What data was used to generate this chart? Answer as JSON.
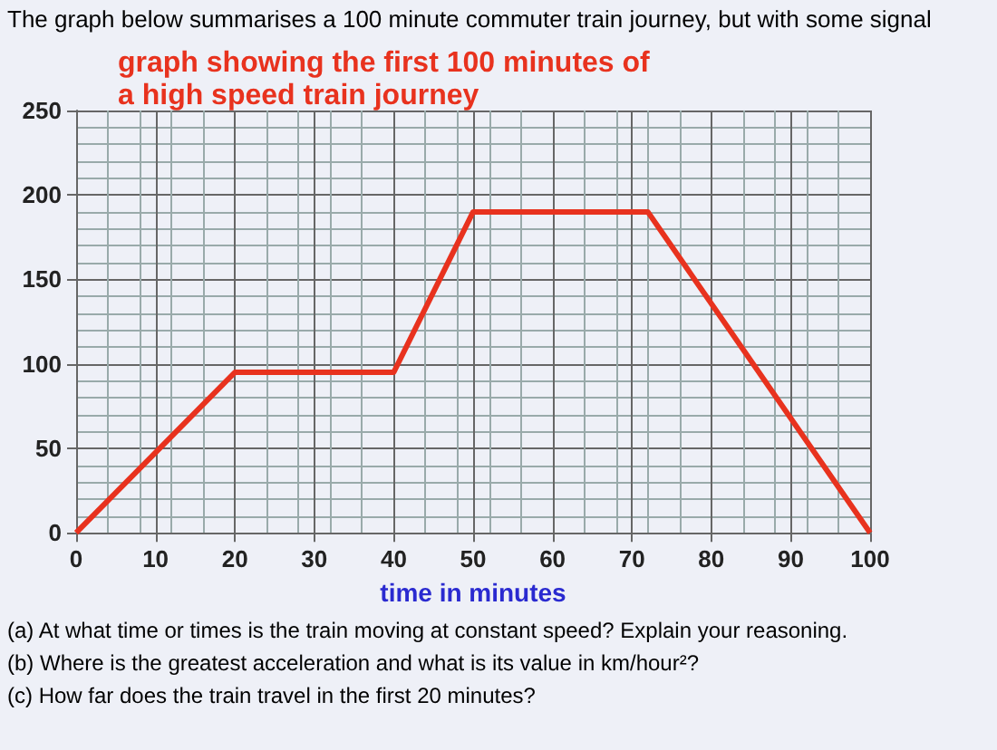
{
  "chart_data": {
    "type": "line",
    "title": "graph showing the first 100 minutes of a high speed train journey",
    "xlabel": "time in minutes",
    "x": [
      0,
      20,
      40,
      50,
      72,
      100
    ],
    "series": [
      {
        "color": "#e8321e",
        "values": [
          0,
          95,
          95,
          190,
          190,
          0
        ]
      }
    ],
    "xlim": [
      0,
      100
    ],
    "xticks": [
      0,
      10,
      20,
      30,
      40,
      50,
      60,
      70,
      80,
      90,
      100
    ],
    "ylim": [
      0,
      250
    ],
    "yticks": [
      0,
      50,
      100,
      150,
      200,
      250
    ],
    "grid": true,
    "marker": "none",
    "line_style": "solid",
    "annotations": [
      "The graph below summarises a 100 minute commuter train journey, but with some signal",
      "(a) At what time or times is the train moving at constant speed? Explain your reasoning.",
      "(b) Where is the greatest acceleration and what is its value in km/hour²?",
      "(c) How far does the train travel in the first 20 minutes?"
    ]
  }
}
